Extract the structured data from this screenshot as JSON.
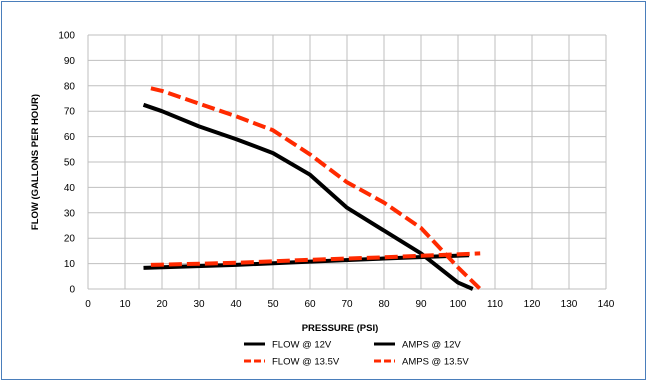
{
  "chart_data": {
    "type": "line",
    "title": "",
    "xlabel": "PRESSURE (PSI)",
    "ylabel": "FLOW (GALLONS PER HOUR)",
    "xlim": [
      0,
      140
    ],
    "ylim": [
      0,
      100
    ],
    "x_ticks": [
      "0",
      "10",
      "20",
      "30",
      "40",
      "50",
      "60",
      "70",
      "80",
      "90",
      "100",
      "110",
      "120",
      "130",
      "140"
    ],
    "y_ticks": [
      "0",
      "10",
      "20",
      "30",
      "40",
      "50",
      "60",
      "70",
      "80",
      "90",
      "100"
    ],
    "grid": true,
    "legend_position": "bottom",
    "series": [
      {
        "name": "FLOW @ 12V",
        "color": "#000000",
        "style": "solid",
        "points": [
          [
            15,
            72.5
          ],
          [
            20,
            70
          ],
          [
            30,
            64
          ],
          [
            40,
            59
          ],
          [
            50,
            53.5
          ],
          [
            60,
            45
          ],
          [
            70,
            32
          ],
          [
            80,
            23
          ],
          [
            90,
            14
          ],
          [
            100,
            2.5
          ],
          [
            104,
            0
          ]
        ]
      },
      {
        "name": "AMPS @ 12V",
        "color": "#000000",
        "style": "solid",
        "points": [
          [
            15,
            8.3
          ],
          [
            40,
            9.5
          ],
          [
            60,
            10.8
          ],
          [
            80,
            12
          ],
          [
            103,
            13.3
          ]
        ]
      },
      {
        "name": "FLOW @ 13.5V",
        "color": "#ff2a00",
        "style": "dashed",
        "points": [
          [
            17,
            79
          ],
          [
            20,
            78
          ],
          [
            30,
            73
          ],
          [
            40,
            68
          ],
          [
            50,
            62.5
          ],
          [
            60,
            53
          ],
          [
            70,
            42
          ],
          [
            80,
            34
          ],
          [
            90,
            24
          ],
          [
            100,
            8.5
          ],
          [
            106,
            0
          ]
        ]
      },
      {
        "name": "AMPS @ 13.5V",
        "color": "#ff2a00",
        "style": "dashed",
        "points": [
          [
            17,
            9.5
          ],
          [
            40,
            10.3
          ],
          [
            60,
            11.5
          ],
          [
            80,
            12.5
          ],
          [
            106,
            14
          ]
        ]
      }
    ]
  }
}
